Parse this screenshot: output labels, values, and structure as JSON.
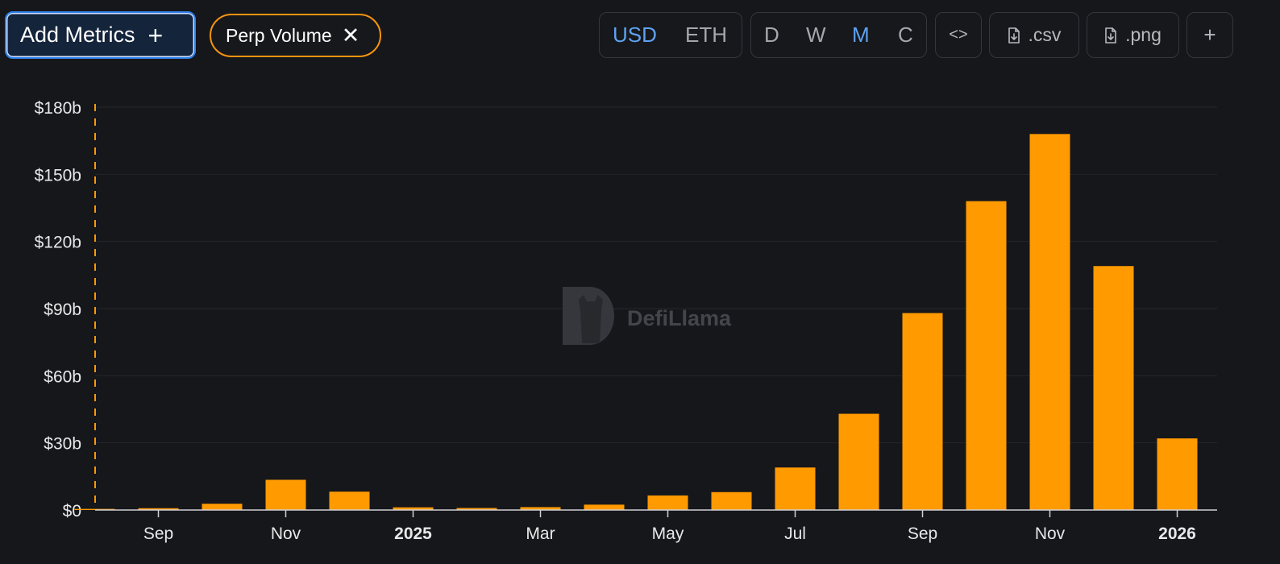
{
  "toolbar": {
    "add_metrics_label": "Add Metrics",
    "add_metrics_icon": "+",
    "metric_chip_label": "Perp Volume",
    "metric_chip_remove_icon": "✕",
    "currency_options": [
      "USD",
      "ETH"
    ],
    "currency_selected": "USD",
    "period_options": [
      "D",
      "W",
      "M",
      "C"
    ],
    "period_selected": "M",
    "embed_label": "<>",
    "csv_label": ".csv",
    "png_label": ".png",
    "more_label": "+"
  },
  "watermark": {
    "text": "DefiLlama"
  },
  "colors": {
    "background": "#16171b",
    "bar": "#ff9a00",
    "accent_blue": "#5ea2f2",
    "chip_border": "#f7940f",
    "grid": "#25262b"
  },
  "chart_data": {
    "type": "bar",
    "title": "",
    "xlabel": "",
    "ylabel": "",
    "series": [
      {
        "name": "Perp Volume",
        "values": [
          0.5,
          0.8,
          2.8,
          13.5,
          8.2,
          1.2,
          0.9,
          1.3,
          2.4,
          6.5,
          8.0,
          19.0,
          43.0,
          88.0,
          138.0,
          168.0,
          109.0,
          32.0
        ]
      }
    ],
    "categories": [
      "2024-08",
      "2024-09",
      "2024-10",
      "2024-11",
      "2024-12",
      "2025-01",
      "2025-02",
      "2025-03",
      "2025-04",
      "2025-05",
      "2025-06",
      "2025-07",
      "2025-08",
      "2025-09",
      "2025-10",
      "2025-11",
      "2025-12",
      "2026-01"
    ],
    "x_tick_labels": [
      {
        "category": "2024-09",
        "label": "Sep",
        "bold": false
      },
      {
        "category": "2024-11",
        "label": "Nov",
        "bold": false
      },
      {
        "category": "2025-01",
        "label": "2025",
        "bold": true
      },
      {
        "category": "2025-03",
        "label": "Mar",
        "bold": false
      },
      {
        "category": "2025-05",
        "label": "May",
        "bold": false
      },
      {
        "category": "2025-07",
        "label": "Jul",
        "bold": false
      },
      {
        "category": "2025-09",
        "label": "Sep",
        "bold": false
      },
      {
        "category": "2025-11",
        "label": "Nov",
        "bold": false
      },
      {
        "category": "2026-01",
        "label": "2026",
        "bold": true
      }
    ],
    "y_ticks": [
      0,
      30,
      60,
      90,
      120,
      150,
      180
    ],
    "y_tick_labels": [
      "$0",
      "$30b",
      "$60b",
      "$90b",
      "$120b",
      "$150b",
      "$180b"
    ],
    "ylim": [
      0,
      180
    ],
    "unit": "billions USD",
    "grid": true,
    "legend": "none"
  }
}
